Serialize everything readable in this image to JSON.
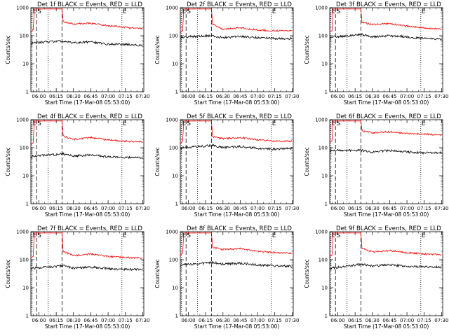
{
  "chart_data": {
    "type": "line",
    "ylim": [
      1,
      1000
    ],
    "yscale": "log",
    "xlabel": "Start Time (17-Mar-08 05:53:00)",
    "ylabel": "Counts/sec",
    "y_tick_labels": [
      "1",
      "10",
      "100",
      "1000"
    ],
    "x_range": [
      "05:53",
      "07:31"
    ],
    "x_tick_labels": [
      "06:00",
      "06:15",
      "06:30",
      "06:45",
      "07:00",
      "07:15",
      "07:30"
    ],
    "markers": [
      {
        "label": "E",
        "time": "05:54",
        "style": "dotted"
      },
      {
        "label": "S",
        "time": "05:58",
        "style": "dashed"
      },
      {
        "label": "",
        "time": "06:08",
        "style": "dotted"
      },
      {
        "label": "",
        "time": "06:20",
        "style": "dashed"
      },
      {
        "label": "E",
        "time": "07:12",
        "style": "dotted"
      }
    ],
    "series_colors": {
      "events": "#000000",
      "lld": "#ff0000"
    },
    "panels": [
      {
        "title": "Det 1f BLACK = Events, RED = LLD",
        "lld": [
          {
            "x": "05:53",
            "y": 140
          },
          {
            "x": "05:55",
            "y": 160
          },
          {
            "x": "05:56",
            "y": 900
          },
          {
            "x": "06:20",
            "y": 900
          },
          {
            "x": "06:21",
            "y": 320
          },
          {
            "x": "06:30",
            "y": 260
          },
          {
            "x": "06:45",
            "y": 280
          },
          {
            "x": "07:00",
            "y": 230
          },
          {
            "x": "07:15",
            "y": 200
          },
          {
            "x": "07:30",
            "y": 180
          }
        ],
        "events": [
          {
            "x": "05:53",
            "y": 50
          },
          {
            "x": "05:55",
            "y": 55
          },
          {
            "x": "06:21",
            "y": 65
          },
          {
            "x": "06:30",
            "y": 55
          },
          {
            "x": "06:45",
            "y": 60
          },
          {
            "x": "07:00",
            "y": 50
          },
          {
            "x": "07:15",
            "y": 48
          },
          {
            "x": "07:30",
            "y": 45
          }
        ]
      },
      {
        "title": "Det 2f BLACK = Events, RED = LLD",
        "lld": [
          {
            "x": "05:53",
            "y": 130
          },
          {
            "x": "05:55",
            "y": 150
          },
          {
            "x": "05:56",
            "y": 900
          },
          {
            "x": "06:20",
            "y": 900
          },
          {
            "x": "06:21",
            "y": 260
          },
          {
            "x": "06:30",
            "y": 170
          },
          {
            "x": "06:45",
            "y": 190
          },
          {
            "x": "07:00",
            "y": 160
          },
          {
            "x": "07:15",
            "y": 150
          },
          {
            "x": "07:30",
            "y": 150
          }
        ],
        "events": [
          {
            "x": "05:53",
            "y": 80
          },
          {
            "x": "05:55",
            "y": 90
          },
          {
            "x": "06:21",
            "y": 100
          },
          {
            "x": "06:30",
            "y": 85
          },
          {
            "x": "06:45",
            "y": 95
          },
          {
            "x": "07:00",
            "y": 85
          },
          {
            "x": "07:15",
            "y": 80
          },
          {
            "x": "07:30",
            "y": 78
          }
        ]
      },
      {
        "title": "Det 3f BLACK = Events, RED = LLD",
        "lld": [
          {
            "x": "05:53",
            "y": 130
          },
          {
            "x": "05:55",
            "y": 150
          },
          {
            "x": "05:56",
            "y": 900
          },
          {
            "x": "06:20",
            "y": 900
          },
          {
            "x": "06:21",
            "y": 300
          },
          {
            "x": "06:30",
            "y": 250
          },
          {
            "x": "06:45",
            "y": 270
          },
          {
            "x": "07:00",
            "y": 220
          },
          {
            "x": "07:15",
            "y": 190
          },
          {
            "x": "07:30",
            "y": 170
          }
        ],
        "events": [
          {
            "x": "05:53",
            "y": 80
          },
          {
            "x": "05:55",
            "y": 90
          },
          {
            "x": "06:21",
            "y": 110
          },
          {
            "x": "06:30",
            "y": 90
          },
          {
            "x": "06:45",
            "y": 100
          },
          {
            "x": "07:00",
            "y": 90
          },
          {
            "x": "07:15",
            "y": 80
          },
          {
            "x": "07:30",
            "y": 75
          }
        ]
      },
      {
        "title": "Det 4f BLACK = Events, RED = LLD",
        "lld": [
          {
            "x": "05:53",
            "y": 130
          },
          {
            "x": "05:55",
            "y": 150
          },
          {
            "x": "05:56",
            "y": 900
          },
          {
            "x": "06:20",
            "y": 900
          },
          {
            "x": "06:21",
            "y": 260
          },
          {
            "x": "06:30",
            "y": 200
          },
          {
            "x": "06:45",
            "y": 230
          },
          {
            "x": "07:00",
            "y": 190
          },
          {
            "x": "07:15",
            "y": 170
          },
          {
            "x": "07:30",
            "y": 160
          }
        ],
        "events": [
          {
            "x": "05:53",
            "y": 45
          },
          {
            "x": "05:55",
            "y": 50
          },
          {
            "x": "06:21",
            "y": 60
          },
          {
            "x": "06:30",
            "y": 50
          },
          {
            "x": "06:45",
            "y": 55
          },
          {
            "x": "07:00",
            "y": 48
          },
          {
            "x": "07:15",
            "y": 45
          },
          {
            "x": "07:30",
            "y": 45
          }
        ]
      },
      {
        "title": "Det 5f BLACK = Events, RED = LLD",
        "lld": [
          {
            "x": "05:53",
            "y": 150
          },
          {
            "x": "05:55",
            "y": 170
          },
          {
            "x": "05:56",
            "y": 900
          },
          {
            "x": "06:20",
            "y": 900
          },
          {
            "x": "06:21",
            "y": 250
          },
          {
            "x": "06:30",
            "y": 210
          },
          {
            "x": "06:45",
            "y": 230
          },
          {
            "x": "07:00",
            "y": 190
          },
          {
            "x": "07:15",
            "y": 170
          },
          {
            "x": "07:30",
            "y": 170
          }
        ],
        "events": [
          {
            "x": "05:53",
            "y": 90
          },
          {
            "x": "05:55",
            "y": 100
          },
          {
            "x": "06:21",
            "y": 120
          },
          {
            "x": "06:30",
            "y": 100
          },
          {
            "x": "06:45",
            "y": 110
          },
          {
            "x": "07:00",
            "y": 95
          },
          {
            "x": "07:15",
            "y": 90
          },
          {
            "x": "07:30",
            "y": 95
          }
        ]
      },
      {
        "title": "Det 6f BLACK = Events, RED = LLD",
        "lld": [
          {
            "x": "05:53",
            "y": 160
          },
          {
            "x": "05:55",
            "y": 180
          },
          {
            "x": "05:56",
            "y": 900
          },
          {
            "x": "06:20",
            "y": 900
          },
          {
            "x": "06:21",
            "y": 400
          },
          {
            "x": "06:30",
            "y": 340
          },
          {
            "x": "06:45",
            "y": 370
          },
          {
            "x": "07:00",
            "y": 320
          },
          {
            "x": "07:15",
            "y": 300
          },
          {
            "x": "07:30",
            "y": 290
          }
        ],
        "events": [
          {
            "x": "05:53",
            "y": 75
          },
          {
            "x": "05:55",
            "y": 80
          },
          {
            "x": "06:21",
            "y": 80
          },
          {
            "x": "06:30",
            "y": 70
          },
          {
            "x": "06:45",
            "y": 80
          },
          {
            "x": "07:00",
            "y": 70
          },
          {
            "x": "07:15",
            "y": 65
          },
          {
            "x": "07:30",
            "y": 65
          }
        ]
      },
      {
        "title": "Det 7f BLACK = Events, RED = LLD",
        "lld": [
          {
            "x": "05:53",
            "y": 110
          },
          {
            "x": "05:55",
            "y": 130
          },
          {
            "x": "05:56",
            "y": 900
          },
          {
            "x": "06:20",
            "y": 900
          },
          {
            "x": "06:21",
            "y": 200
          },
          {
            "x": "06:30",
            "y": 140
          },
          {
            "x": "06:45",
            "y": 160
          },
          {
            "x": "07:00",
            "y": 130
          },
          {
            "x": "07:15",
            "y": 120
          },
          {
            "x": "07:30",
            "y": 115
          }
        ],
        "events": [
          {
            "x": "05:53",
            "y": 45
          },
          {
            "x": "05:55",
            "y": 50
          },
          {
            "x": "06:21",
            "y": 60
          },
          {
            "x": "06:30",
            "y": 50
          },
          {
            "x": "06:45",
            "y": 55
          },
          {
            "x": "07:00",
            "y": 48
          },
          {
            "x": "07:15",
            "y": 45
          },
          {
            "x": "07:30",
            "y": 45
          }
        ]
      },
      {
        "title": "Det 8f BLACK = Events, RED = LLD",
        "lld": [
          {
            "x": "05:53",
            "y": 150
          },
          {
            "x": "05:55",
            "y": 170
          },
          {
            "x": "05:56",
            "y": 900
          },
          {
            "x": "06:20",
            "y": 900
          },
          {
            "x": "06:21",
            "y": 280
          },
          {
            "x": "06:30",
            "y": 230
          },
          {
            "x": "06:45",
            "y": 250
          },
          {
            "x": "07:00",
            "y": 200
          },
          {
            "x": "07:15",
            "y": 180
          },
          {
            "x": "07:30",
            "y": 170
          }
        ],
        "events": [
          {
            "x": "05:53",
            "y": 60
          },
          {
            "x": "05:55",
            "y": 65
          },
          {
            "x": "06:21",
            "y": 80
          },
          {
            "x": "06:30",
            "y": 70
          },
          {
            "x": "06:45",
            "y": 75
          },
          {
            "x": "07:00",
            "y": 65
          },
          {
            "x": "07:15",
            "y": 60
          },
          {
            "x": "07:30",
            "y": 58
          }
        ]
      },
      {
        "title": "Det 9f BLACK = Events, RED = LLD",
        "lld": [
          {
            "x": "05:53",
            "y": 130
          },
          {
            "x": "05:55",
            "y": 150
          },
          {
            "x": "05:56",
            "y": 900
          },
          {
            "x": "06:20",
            "y": 900
          },
          {
            "x": "06:21",
            "y": 260
          },
          {
            "x": "06:30",
            "y": 190
          },
          {
            "x": "06:45",
            "y": 210
          },
          {
            "x": "07:00",
            "y": 180
          },
          {
            "x": "07:15",
            "y": 160
          },
          {
            "x": "07:30",
            "y": 150
          }
        ],
        "events": [
          {
            "x": "05:53",
            "y": 45
          },
          {
            "x": "05:55",
            "y": 50
          },
          {
            "x": "06:21",
            "y": 70
          },
          {
            "x": "06:30",
            "y": 60
          },
          {
            "x": "06:45",
            "y": 65
          },
          {
            "x": "07:00",
            "y": 58
          },
          {
            "x": "07:15",
            "y": 55
          },
          {
            "x": "07:30",
            "y": 55
          }
        ]
      }
    ]
  }
}
